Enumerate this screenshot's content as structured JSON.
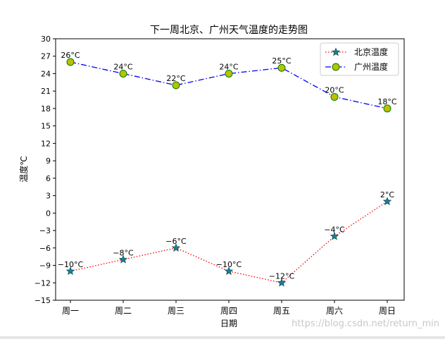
{
  "chart_data": {
    "type": "line",
    "title": "下一周北京、广州天气温度的走势图",
    "xlabel": "日期",
    "ylabel": "温度℃",
    "categories": [
      "周一",
      "周二",
      "周三",
      "周四",
      "周五",
      "周六",
      "周日"
    ],
    "ylim": [
      -15,
      30
    ],
    "yticks": [
      -15,
      -12,
      -9,
      -6,
      -3,
      0,
      3,
      6,
      9,
      12,
      15,
      18,
      21,
      24,
      27,
      30
    ],
    "grid": false,
    "legend_position": "top-right",
    "series": [
      {
        "name": "北京温度",
        "values": [
          -10,
          -8,
          -6,
          -10,
          -12,
          -4,
          2
        ],
        "labels": [
          "-10°C",
          "-8°C",
          "-6°C",
          "-10°C",
          "-12°C",
          "-4°C",
          "2°C"
        ],
        "color": "#ff0000",
        "marker_color": "#1f77b4",
        "marker": "star",
        "linestyle": "dotted"
      },
      {
        "name": "广州温度",
        "values": [
          26,
          24,
          22,
          24,
          25,
          20,
          18
        ],
        "labels": [
          "26°C",
          "24°C",
          "22°C",
          "24°C",
          "25°C",
          "20°C",
          "18°C"
        ],
        "color": "#0000ff",
        "marker_color": "#bfbf00",
        "marker_edge": "#008000",
        "marker": "circle",
        "linestyle": "dashdot"
      }
    ]
  },
  "watermark": "https://blog.csdn.net/return_min"
}
